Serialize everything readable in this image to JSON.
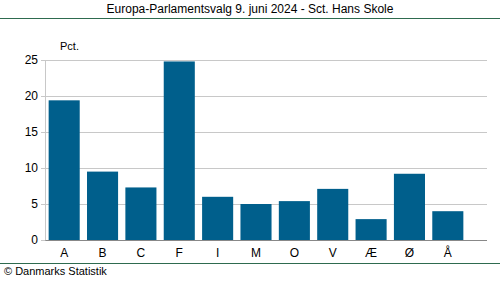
{
  "chart_data": {
    "type": "bar",
    "title": "Europa-Parlamentsvalg 9. juni 2024 - Sct. Hans Skole",
    "ylabel": "Pct.",
    "source": "© Danmarks Statistik",
    "categories": [
      "A",
      "B",
      "C",
      "F",
      "I",
      "M",
      "O",
      "V",
      "Æ",
      "Ø",
      "Å"
    ],
    "values": [
      19.4,
      9.5,
      7.3,
      24.8,
      6.0,
      5.0,
      5.4,
      7.1,
      2.9,
      9.2,
      4.0
    ],
    "color": "#005f8c",
    "ylim": [
      0,
      25
    ],
    "yticks": [
      0,
      5,
      10,
      15,
      20,
      25
    ],
    "grid": true
  }
}
